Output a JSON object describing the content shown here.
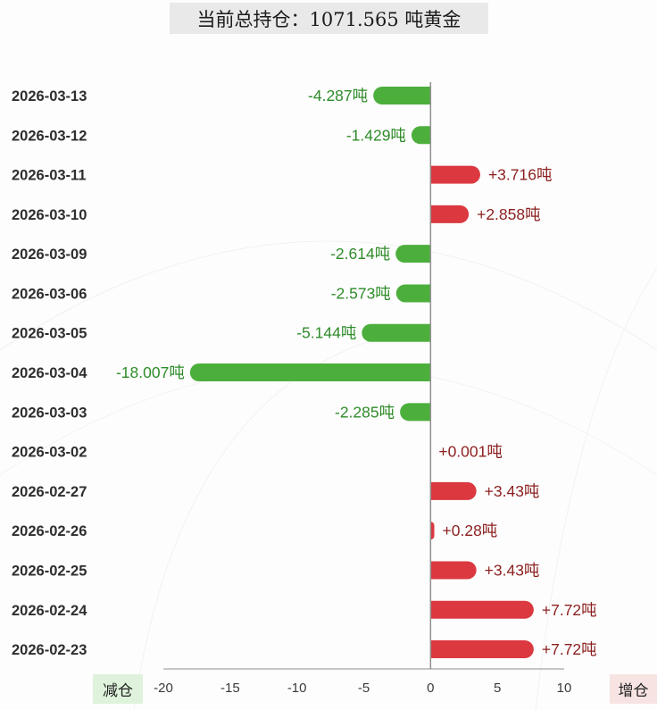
{
  "chart_data": {
    "type": "bar",
    "orientation": "horizontal",
    "title": "当前总持仓：1071.565 吨黄金",
    "categories": [
      "2026-03-13",
      "2026-03-12",
      "2026-03-11",
      "2026-03-10",
      "2026-03-09",
      "2026-03-06",
      "2026-03-05",
      "2026-03-04",
      "2026-03-03",
      "2026-03-02",
      "2026-02-27",
      "2026-02-26",
      "2026-02-25",
      "2026-02-24",
      "2026-02-23"
    ],
    "values": [
      -4.287,
      -1.429,
      3.716,
      2.858,
      -2.614,
      -2.573,
      -5.144,
      -18.007,
      -2.285,
      0.001,
      3.43,
      0.28,
      3.43,
      7.72,
      7.72
    ],
    "value_labels": [
      "-4.287吨",
      "-1.429吨",
      "+3.716吨",
      "+2.858吨",
      "-2.614吨",
      "-2.573吨",
      "-5.144吨",
      "-18.007吨",
      "-2.285吨",
      "+0.001吨",
      "+3.43吨",
      "+0.28吨",
      "+3.43吨",
      "+7.72吨",
      "+7.72吨"
    ],
    "xlim": [
      -20,
      10
    ],
    "xticks": [
      -20,
      -15,
      -10,
      -5,
      0,
      5,
      10
    ],
    "negative_label": "减仓",
    "positive_label": "增仓",
    "colors": {
      "negative_bar": "#4caf3c",
      "positive_bar": "#db3840",
      "negative_text": "#2f8c2a",
      "positive_text": "#8c1f1f",
      "negative_box": "#dff3dc",
      "positive_box": "#f8e3e3",
      "axis": "#8f8f8f"
    }
  }
}
